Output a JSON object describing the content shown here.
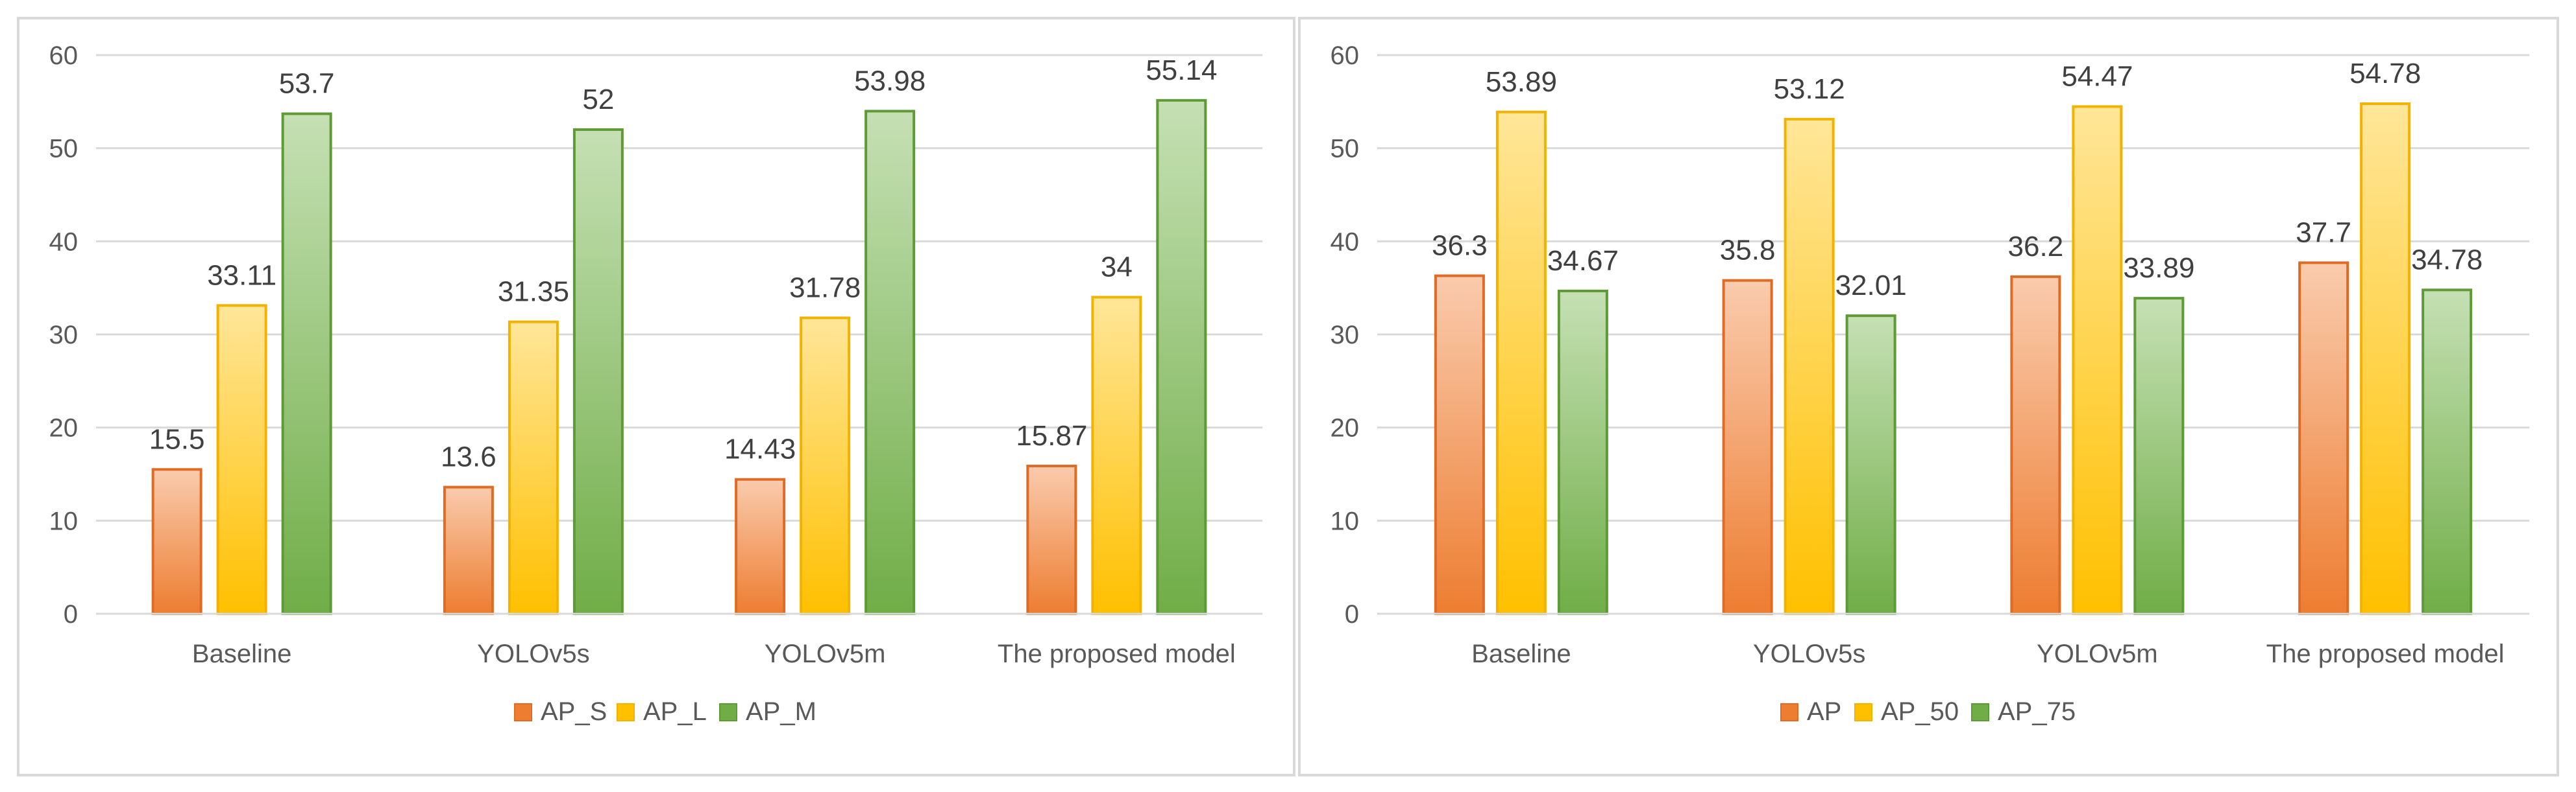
{
  "chart_data": [
    {
      "type": "bar",
      "title": "",
      "xlabel": "",
      "ylabel": "",
      "ylim": [
        0,
        60
      ],
      "yticks": [
        0,
        10,
        20,
        30,
        40,
        50,
        60
      ],
      "grid": true,
      "legend_position": "bottom",
      "categories": [
        "Baseline",
        "YOLOv5s",
        "YOLOv5m",
        "The proposed model"
      ],
      "series": [
        {
          "name": "AP_S",
          "values": [
            15.5,
            13.6,
            14.43,
            15.87
          ],
          "labels": [
            "15.5",
            "13.6",
            "14.43",
            "15.87"
          ],
          "color": "#ed7d31",
          "light": "#f9cbad",
          "edge": "#e06b24"
        },
        {
          "name": "AP_L",
          "values": [
            33.11,
            31.35,
            31.78,
            34
          ],
          "labels": [
            "33.11",
            "31.35",
            "31.78",
            "34"
          ],
          "color": "#ffc000",
          "light": "#ffe699",
          "edge": "#f2b300"
        },
        {
          "name": "AP_M",
          "values": [
            53.7,
            52,
            53.98,
            55.14
          ],
          "labels": [
            "53.7",
            "52",
            "53.98",
            "55.14"
          ],
          "color": "#70ad47",
          "light": "#c5e0b4",
          "edge": "#5e9a36"
        }
      ]
    },
    {
      "type": "bar",
      "title": "",
      "xlabel": "",
      "ylabel": "",
      "ylim": [
        0,
        60
      ],
      "yticks": [
        0,
        10,
        20,
        30,
        40,
        50,
        60
      ],
      "grid": true,
      "legend_position": "bottom",
      "categories": [
        "Baseline",
        "YOLOv5s",
        "YOLOv5m",
        "The proposed model"
      ],
      "series": [
        {
          "name": "AP",
          "values": [
            36.3,
            35.8,
            36.2,
            37.7
          ],
          "labels": [
            "36.3",
            "35.8",
            "36.2",
            "37.7"
          ],
          "color": "#ed7d31",
          "light": "#f9cbad",
          "edge": "#e06b24"
        },
        {
          "name": "AP_50",
          "values": [
            53.89,
            53.12,
            54.47,
            54.78
          ],
          "labels": [
            "53.89",
            "53.12",
            "54.47",
            "54.78"
          ],
          "color": "#ffc000",
          "light": "#ffe699",
          "edge": "#f2b300"
        },
        {
          "name": "AP_75",
          "values": [
            34.67,
            32.01,
            33.89,
            34.78
          ],
          "labels": [
            "34.67",
            "32.01",
            "33.89",
            "34.78"
          ],
          "color": "#70ad47",
          "light": "#c5e0b4",
          "edge": "#5e9a36"
        }
      ]
    }
  ]
}
